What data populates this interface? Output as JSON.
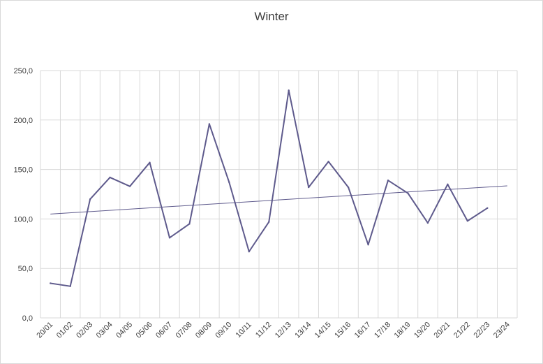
{
  "chart_data": {
    "type": "line",
    "title": "Winter",
    "xlabel": "",
    "ylabel": "",
    "ylim": [
      0,
      250
    ],
    "y_ticks": [
      "0,0",
      "50,0",
      "100,0",
      "150,0",
      "200,0",
      "250,0"
    ],
    "categories": [
      "20/01",
      "01/02",
      "02/03",
      "03/04",
      "04/05",
      "05/06",
      "06/07",
      "07/08",
      "08/09",
      "09/10",
      "10/11",
      "11/12",
      "12/13",
      "13/14",
      "14/15",
      "15/16",
      "16/17",
      "17/18",
      "18/19",
      "19/20",
      "20/21",
      "21/22",
      "22/23",
      "23/24"
    ],
    "series": [
      {
        "values": [
          35,
          32,
          120,
          142,
          133,
          157,
          81,
          95,
          196,
          137,
          67,
          97,
          230,
          132,
          158,
          132,
          74,
          139,
          126,
          96,
          135,
          98,
          111,
          null
        ],
        "color": "#5e5a8c"
      }
    ],
    "trendline": {
      "start": 105,
      "end": 133.5,
      "color": "#5e5a8c"
    },
    "grid": {
      "vertical": true,
      "horizontal": true,
      "color": "#d9d9d9"
    },
    "legend": "none"
  }
}
